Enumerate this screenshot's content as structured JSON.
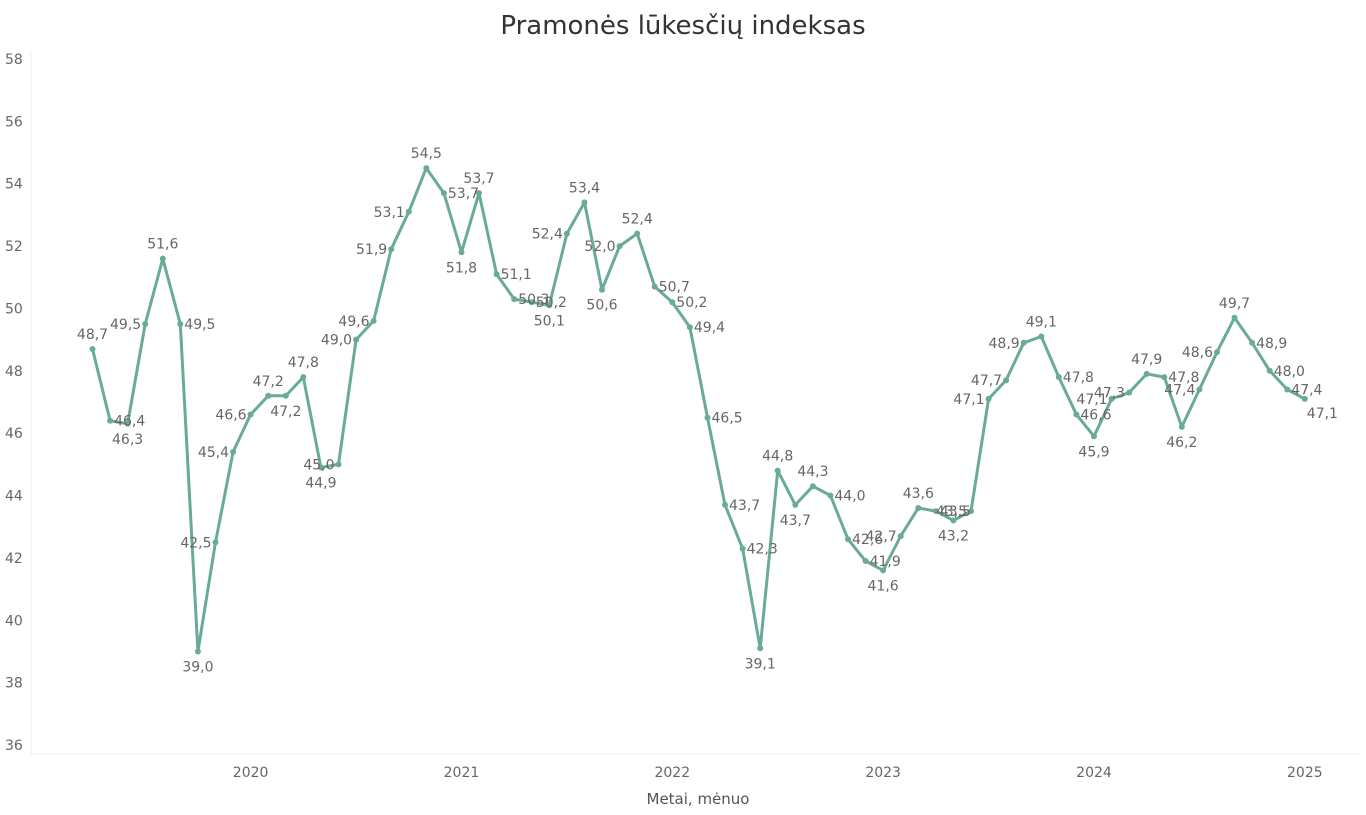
{
  "chart_data": {
    "type": "line",
    "title": "Pramonės lūkesčių indeksas",
    "xlabel": "Metai, mėnuo",
    "ylabel": "",
    "ylim": [
      36,
      58
    ],
    "yticks": [
      "36",
      "38",
      "40",
      "42",
      "44",
      "46",
      "48",
      "50",
      "52",
      "54",
      "56",
      "58"
    ],
    "year_labels": [
      "2020",
      "2021",
      "2022",
      "2023",
      "2024",
      "2025"
    ],
    "grid": false,
    "line_color": "#6aaa9a",
    "series": [
      {
        "x": [
          "2019-10",
          "2019-11",
          "2019-12",
          "2020-01",
          "2020-02",
          "2020-03",
          "2020-04",
          "2020-05",
          "2020-06",
          "2020-07",
          "2020-08",
          "2020-09",
          "2020-10",
          "2020-11",
          "2020-12",
          "2021-01",
          "2021-02",
          "2021-03",
          "2021-04",
          "2021-05",
          "2021-06",
          "2021-07",
          "2021-08",
          "2021-09",
          "2021-10",
          "2021-11",
          "2021-12",
          "2022-01",
          "2022-02",
          "2022-03",
          "2022-04",
          "2022-05",
          "2022-06",
          "2022-07",
          "2022-08",
          "2022-09",
          "2022-10",
          "2022-11",
          "2022-12",
          "2023-01",
          "2023-02",
          "2023-03",
          "2023-04",
          "2023-05",
          "2023-06",
          "2023-07",
          "2023-08",
          "2023-09",
          "2023-10",
          "2023-11",
          "2023-12",
          "2024-01",
          "2024-02",
          "2024-03",
          "2024-04",
          "2024-05",
          "2024-06",
          "2024-07",
          "2024-08",
          "2024-09",
          "2024-10",
          "2024-11",
          "2024-12",
          "2025-01",
          "2025-02",
          "2025-03",
          "2025-04",
          "2025-05",
          "2025-06",
          "2025-07"
        ],
        "values": [
          48.7,
          46.4,
          46.3,
          49.5,
          51.6,
          49.5,
          39.0,
          42.5,
          45.4,
          46.6,
          47.2,
          47.2,
          47.8,
          44.9,
          45.0,
          49.0,
          49.6,
          51.9,
          53.1,
          54.5,
          53.7,
          51.8,
          53.7,
          51.1,
          50.3,
          50.2,
          50.1,
          52.4,
          53.4,
          50.6,
          52.0,
          52.4,
          50.7,
          50.2,
          49.4,
          46.5,
          43.7,
          42.3,
          39.1,
          44.8,
          43.7,
          44.3,
          44.0,
          42.6,
          41.9,
          41.6,
          42.7,
          43.6,
          43.5,
          43.2,
          43.5,
          47.1,
          47.7,
          48.9,
          49.1,
          47.8,
          46.6,
          45.9,
          47.1,
          47.3,
          47.9,
          47.8,
          46.2,
          47.4,
          48.6,
          49.7,
          48.9,
          48.0,
          47.4,
          47.1
        ],
        "labels": [
          "48,7",
          "46,4",
          "46,3",
          "49,5",
          "51,6",
          "49,5",
          "39,0",
          "42,5",
          "45,4",
          "46,6",
          "47,2",
          "47,2",
          "47,8",
          "44,9",
          "45,0",
          "49,0",
          "49,6",
          "51,9",
          "53,1",
          "54,5",
          "53,7",
          "51,8",
          "53,7",
          "51,1",
          "50,3",
          "50,2",
          "50,1",
          "52,4",
          "53,4",
          "50,6",
          "52,0",
          "52,4",
          "50,7",
          "50,2",
          "49,4",
          "46,5",
          "43,7",
          "42,3",
          "39,1",
          "44,8",
          "43,7",
          "44,3",
          "44,0",
          "42,6",
          "41,9",
          "41,6",
          "42,7",
          "43,6",
          "43,5",
          "43,2",
          "43,5",
          "47,1",
          "47,7",
          "48,9",
          "49,1",
          "47,8",
          "46,6",
          "45,9",
          "47,1",
          "47,3",
          "47,9",
          "47,8",
          "46,2",
          "47,4",
          "48,6",
          "49,7",
          "48,9",
          "48,0",
          "47,4",
          "47,1"
        ]
      }
    ]
  }
}
